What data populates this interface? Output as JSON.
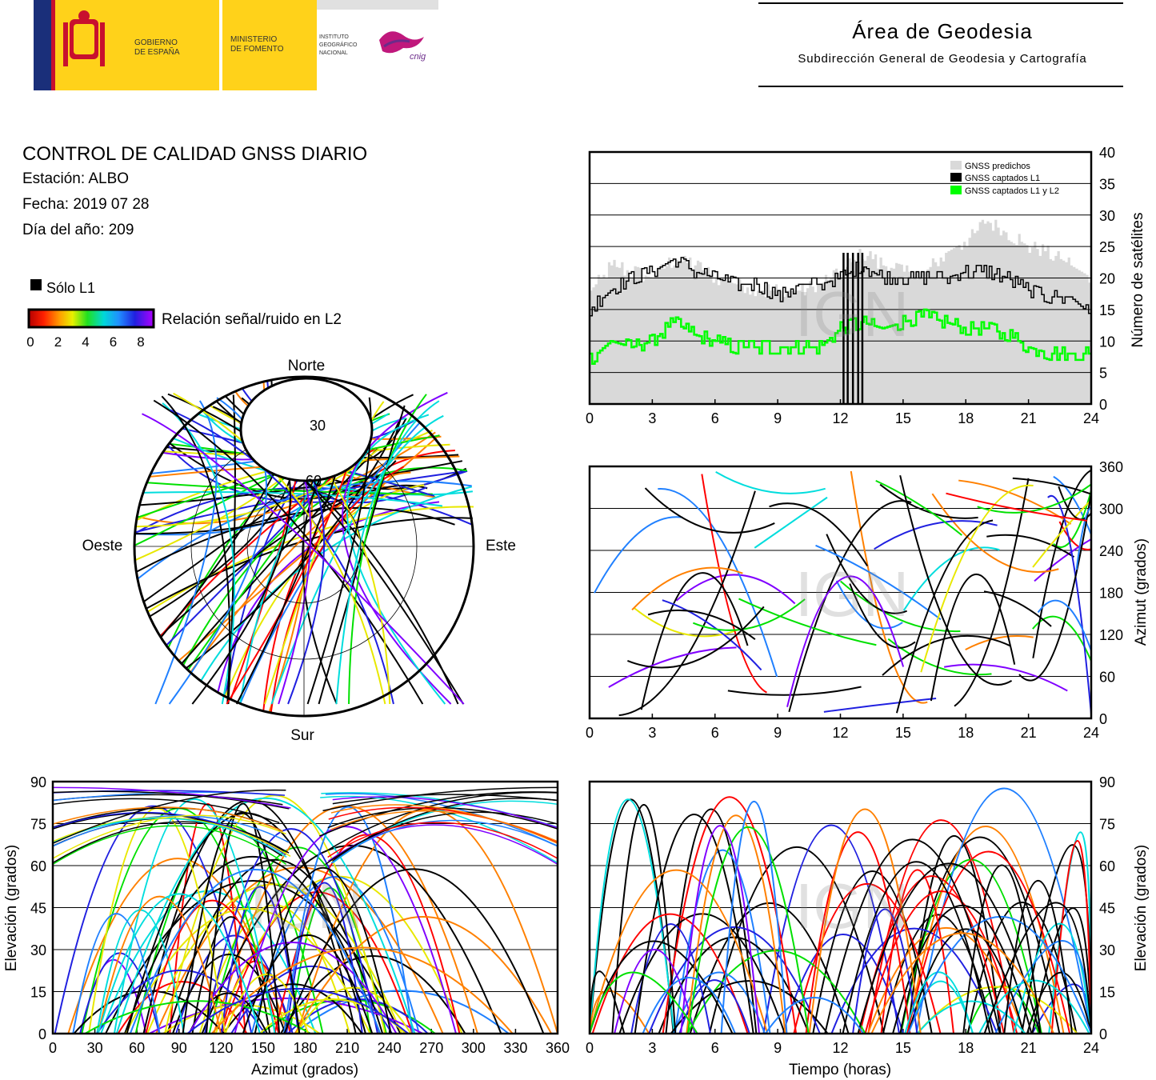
{
  "header": {
    "gov_line1": "GOBIERNO",
    "gov_line2": "DE ESPAÑA",
    "ministry_line1": "MINISTERIO",
    "ministry_line2": "DE FOMENTO",
    "ign_line1": "INSTITUTO",
    "ign_line2": "GEOGRÁFICO",
    "ign_line3": "NACIONAL",
    "cnig_logo_text": "cnig",
    "area_title": "Área de Geodesia",
    "area_subtitle": "Subdirección General de Geodesia y Cartografía"
  },
  "info": {
    "title": "CONTROL DE CALIDAD GNSS DIARIO",
    "station": "Estación: ALBO",
    "date": "Fecha: 2019 07 28",
    "doy": "Día del año: 209"
  },
  "legend": {
    "l1_only": "Sólo L1",
    "snr_label": "Relación señal/ruido en L2",
    "snr_ticks": [
      "0",
      "2",
      "4",
      "6",
      "8"
    ],
    "colors": {
      "black": "#000000",
      "green": "#00ff00",
      "gray": "#d9d9d9"
    }
  },
  "watermark": "IGN",
  "chart_data": [
    {
      "type": "area",
      "id": "satellite-count",
      "ylabel": "Número de satélites",
      "x_ticks": [
        "0",
        "3",
        "6",
        "9",
        "12",
        "15",
        "18",
        "21",
        "24"
      ],
      "y_ticks": [
        "0",
        "5",
        "10",
        "15",
        "20",
        "25",
        "30",
        "35",
        "40"
      ],
      "xlim": [
        0,
        24
      ],
      "ylim": [
        0,
        40
      ],
      "legend_position": "top-right",
      "series": [
        {
          "name": "GNSS predichos",
          "color": "#d9d9d9",
          "x": [
            0,
            1,
            2,
            3,
            4,
            5,
            6,
            7,
            8,
            9,
            10,
            11,
            12,
            13,
            14,
            15,
            16,
            17,
            18,
            19,
            20,
            21,
            22,
            23,
            24
          ],
          "values": [
            18,
            22,
            21,
            20,
            23,
            22,
            20,
            19,
            18,
            18,
            18,
            19,
            21,
            24,
            22,
            21,
            21,
            24,
            26,
            29,
            27,
            25,
            24,
            22,
            20
          ]
        },
        {
          "name": "GNSS captados L1",
          "color": "#000000",
          "x": [
            0,
            1,
            2,
            3,
            4,
            5,
            6,
            7,
            8,
            9,
            10,
            11,
            12,
            13,
            14,
            15,
            16,
            17,
            18,
            19,
            20,
            21,
            22,
            23,
            24
          ],
          "values": [
            15,
            18,
            20,
            21,
            23,
            21,
            20,
            19,
            19,
            17,
            19,
            19,
            20,
            22,
            20,
            20,
            20,
            20,
            21,
            21,
            20,
            18,
            17,
            17,
            14
          ]
        },
        {
          "name": "GNSS captados L1 y L2",
          "color": "#00ff00",
          "x": [
            0,
            1,
            2,
            3,
            4,
            5,
            6,
            7,
            8,
            9,
            10,
            11,
            12,
            13,
            14,
            15,
            16,
            17,
            18,
            19,
            20,
            21,
            22,
            23,
            24
          ],
          "values": [
            7,
            10,
            9,
            10,
            13,
            11,
            10,
            9,
            9,
            9,
            9,
            9,
            12,
            13,
            12,
            13,
            14,
            13,
            12,
            12,
            11,
            9,
            8,
            8,
            8
          ]
        }
      ]
    },
    {
      "type": "scatter",
      "id": "azimuth-time",
      "ylabel": "Azimut (grados)",
      "x_ticks": [
        "0",
        "3",
        "6",
        "9",
        "12",
        "15",
        "18",
        "21",
        "24"
      ],
      "y_ticks": [
        "0",
        "60",
        "120",
        "180",
        "240",
        "300",
        "360"
      ],
      "xlim": [
        0,
        24
      ],
      "ylim": [
        0,
        360
      ]
    },
    {
      "type": "scatter",
      "id": "elevation-azimuth",
      "xlabel": "Azimut (grados)",
      "ylabel": "Elevación (grados)",
      "x_ticks": [
        "0",
        "30",
        "60",
        "90",
        "120",
        "150",
        "180",
        "210",
        "240",
        "270",
        "300",
        "330",
        "360"
      ],
      "y_ticks": [
        "0",
        "15",
        "30",
        "45",
        "60",
        "75",
        "90"
      ],
      "xlim": [
        0,
        360
      ],
      "ylim": [
        0,
        90
      ]
    },
    {
      "type": "scatter",
      "id": "elevation-time",
      "xlabel": "Tiempo (horas)",
      "ylabel": "Elevación (grados)",
      "x_ticks": [
        "0",
        "3",
        "6",
        "9",
        "12",
        "15",
        "18",
        "21",
        "24"
      ],
      "y_ticks": [
        "0",
        "15",
        "30",
        "45",
        "60",
        "75",
        "90"
      ],
      "xlim": [
        0,
        24
      ],
      "ylim": [
        0,
        90
      ]
    },
    {
      "type": "scatter",
      "id": "skyplot",
      "labels": {
        "north": "Norte",
        "south": "Sur",
        "east": "Este",
        "west": "Oeste"
      },
      "ring_labels": [
        "30",
        "60"
      ]
    }
  ]
}
